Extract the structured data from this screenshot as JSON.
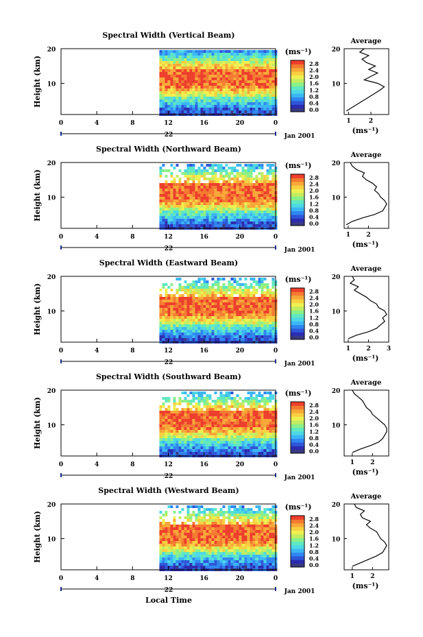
{
  "figure": {
    "x_label": "Local Time",
    "date_label": "Jan 2001",
    "day_label": "22",
    "x_ticks": [
      "0",
      "4",
      "8",
      "12",
      "16",
      "20",
      "0"
    ],
    "y_label": "Height (km)",
    "y_ticks": [
      "20",
      "10"
    ],
    "unit_label": "(ms⁻¹)",
    "avg_title": "Average",
    "avg_xlabel": "(ms⁻¹)"
  },
  "colorscale": {
    "ticks": [
      "2.8",
      "2.4",
      "2.0",
      "1.6",
      "1.2",
      "0.8",
      "0.4",
      "0.0"
    ],
    "colors": [
      "#3a3a80",
      "#2c2cb0",
      "#2e56d8",
      "#2f86f0",
      "#3bb6f4",
      "#4cd8e4",
      "#60e8c0",
      "#8af088",
      "#c4ec60",
      "#eef050",
      "#f8d040",
      "#f8a838",
      "#f47a30",
      "#ee3e2c"
    ]
  },
  "chart_data": [
    {
      "type": "heatmap",
      "title": "Spectral Width (Vertical Beam)",
      "xlabel": "Local Time",
      "ylabel": "Height (km)",
      "x_range_hours": [
        0,
        24
      ],
      "y_range_km": [
        1,
        20
      ],
      "data_start_hour": 11,
      "colorbar_range": [
        0.0,
        2.8
      ],
      "average_profile": {
        "xticks": [
          "1",
          "2"
        ],
        "xlim": [
          0.8,
          2.8
        ],
        "height_km": [
          2,
          4,
          6,
          8,
          9,
          10,
          11,
          12,
          13,
          14,
          15,
          16,
          17,
          18,
          19,
          20
        ],
        "width_ms": [
          0.9,
          1.4,
          1.9,
          2.4,
          2.6,
          2.3,
          1.7,
          2.0,
          2.3,
          1.9,
          2.2,
          1.8,
          1.6,
          1.9,
          1.5,
          1.7
        ]
      }
    },
    {
      "type": "heatmap",
      "title": "Spectral Width (Northward Beam)",
      "xlabel": "Local Time",
      "ylabel": "Height (km)",
      "x_range_hours": [
        0,
        24
      ],
      "y_range_km": [
        1,
        20
      ],
      "data_start_hour": 11,
      "colorbar_range": [
        0.0,
        2.8
      ],
      "average_profile": {
        "xticks": [
          "1",
          "2"
        ],
        "xlim": [
          0.8,
          3.0
        ],
        "height_km": [
          2,
          3,
          4,
          5,
          6,
          7,
          8,
          9,
          10,
          11,
          12,
          13,
          14,
          15,
          16,
          17,
          18,
          19,
          20
        ],
        "width_ms": [
          0.9,
          1.2,
          1.7,
          2.3,
          2.7,
          2.8,
          2.9,
          2.8,
          2.6,
          2.5,
          2.3,
          2.4,
          2.2,
          1.9,
          1.7,
          1.8,
          1.4,
          1.2,
          1.1
        ]
      }
    },
    {
      "type": "heatmap",
      "title": "Spectral Width (Eastward Beam)",
      "xlabel": "Local Time",
      "ylabel": "Height (km)",
      "x_range_hours": [
        0,
        24
      ],
      "y_range_km": [
        1,
        20
      ],
      "data_start_hour": 11,
      "colorbar_range": [
        0.0,
        2.8
      ],
      "average_profile": {
        "xticks": [
          "1",
          "2",
          "3"
        ],
        "xlim": [
          0.8,
          3.0
        ],
        "height_km": [
          2,
          3,
          4,
          5,
          6,
          7,
          8,
          9,
          10,
          11,
          12,
          13,
          14,
          15,
          16,
          17,
          18,
          19,
          20
        ],
        "width_ms": [
          1.0,
          1.4,
          2.0,
          2.4,
          2.6,
          2.8,
          2.7,
          2.9,
          2.8,
          2.5,
          2.4,
          2.1,
          1.9,
          1.6,
          1.3,
          1.5,
          1.1,
          1.3,
          1.2
        ]
      }
    },
    {
      "type": "heatmap",
      "title": "Spectral Width (Southward Beam)",
      "xlabel": "Local Time",
      "ylabel": "Height (km)",
      "x_range_hours": [
        0,
        24
      ],
      "y_range_km": [
        1,
        20
      ],
      "data_start_hour": 11,
      "colorbar_range": [
        0.0,
        2.8
      ],
      "average_profile": {
        "xticks": [
          "1",
          "2"
        ],
        "xlim": [
          0.6,
          2.8
        ],
        "height_km": [
          2,
          3,
          4,
          5,
          6,
          7,
          8,
          9,
          10,
          11,
          12,
          13,
          14,
          15,
          16,
          17,
          18,
          19,
          20
        ],
        "width_ms": [
          1.0,
          1.4,
          1.9,
          2.3,
          2.5,
          2.6,
          2.7,
          2.7,
          2.6,
          2.4,
          2.2,
          2.0,
          1.9,
          1.7,
          1.6,
          1.5,
          1.3,
          1.1,
          1.0
        ]
      }
    },
    {
      "type": "heatmap",
      "title": "Spectral Width (Westward Beam)",
      "xlabel": "Local Time",
      "ylabel": "Height (km)",
      "x_range_hours": [
        0,
        24
      ],
      "y_range_km": [
        1,
        20
      ],
      "data_start_hour": 11,
      "colorbar_range": [
        0.0,
        2.8
      ],
      "average_profile": {
        "xticks": [
          "1",
          "2"
        ],
        "xlim": [
          0.6,
          2.8
        ],
        "height_km": [
          2,
          3,
          4,
          5,
          6,
          7,
          8,
          9,
          10,
          11,
          12,
          13,
          14,
          15,
          16,
          17,
          18,
          19,
          20
        ],
        "width_ms": [
          1.0,
          1.4,
          1.8,
          2.2,
          2.5,
          2.6,
          2.7,
          2.6,
          2.4,
          2.3,
          2.2,
          1.9,
          1.7,
          1.9,
          1.5,
          1.4,
          1.6,
          1.2,
          1.1
        ]
      }
    }
  ]
}
